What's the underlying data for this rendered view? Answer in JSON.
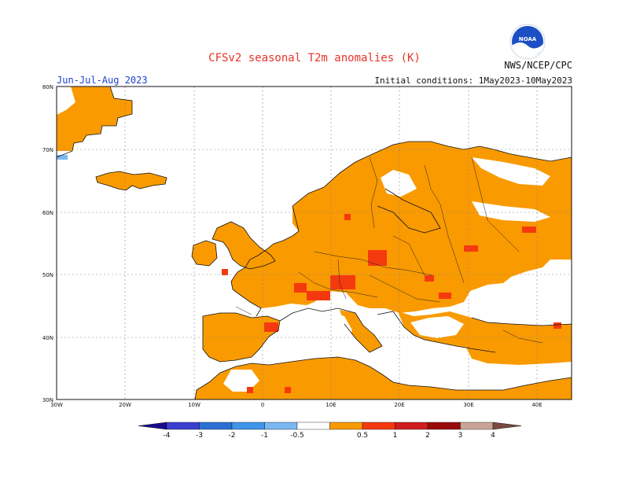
{
  "header": {
    "title": "CFSv2 seasonal T2m anomalies (K)",
    "agency": "NWS/NCEP/CPC",
    "season": "Jun-Jul-Aug 2023",
    "initial_conditions": "Initial conditions: 1May2023-10May2023",
    "logo_text": "NOAA"
  },
  "axes": {
    "lon_ticks": [
      "30W",
      "20W",
      "10W",
      "0",
      "10E",
      "20E",
      "30E",
      "40E"
    ],
    "lat_ticks": [
      "80N",
      "70N",
      "60N",
      "50N",
      "40N",
      "30N"
    ]
  },
  "colorbar": {
    "labels": [
      "-4",
      "-3",
      "-2",
      "-1",
      "-0.5",
      "0.5",
      "1",
      "2",
      "3",
      "4"
    ],
    "colors": [
      "#1a0a8c",
      "#3a3fd0",
      "#2a6fd6",
      "#3f95e8",
      "#7ab8f2",
      "#ffffff",
      "#f99a00",
      "#f5390f",
      "#d01d1d",
      "#9a0a0a",
      "#c8a596",
      "#7a4a3e"
    ]
  },
  "map_colors": {
    "warm_05_1": "#f99a00",
    "warm_1_2": "#f5390f",
    "warm_2_3": "#9a0a0a",
    "cool_05_1": "#7ab8f2"
  }
}
